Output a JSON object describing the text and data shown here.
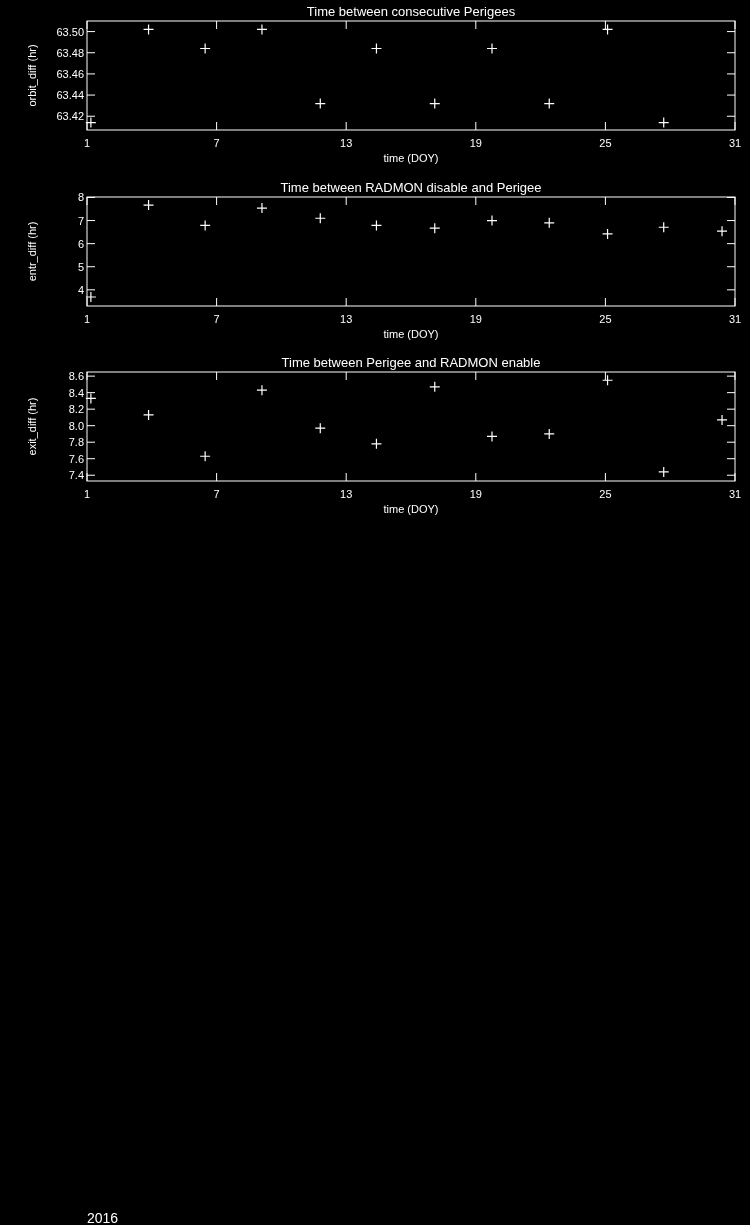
{
  "chart_data": [
    {
      "type": "scatter",
      "title": "Time between consecutive Perigees",
      "xlabel": "time (DOY)",
      "ylabel": "orbit_diff (hr)",
      "marker": "cross",
      "x": [
        1.18,
        3.85,
        6.47,
        9.1,
        11.8,
        14.4,
        17.1,
        19.75,
        22.4,
        25.1,
        27.7
      ],
      "series": [
        {
          "color": "#ffffff",
          "values": [
            63.414,
            63.502,
            63.484,
            63.502,
            63.432,
            63.484,
            63.432,
            63.484,
            63.432,
            63.502,
            63.414
          ]
        }
      ],
      "xlim": [
        1,
        31
      ],
      "xticks": [
        1,
        7,
        13,
        19,
        25,
        31
      ],
      "ylim": [
        63.407,
        63.51
      ],
      "yticks": [
        {
          "value": 63.42,
          "label": "63.42"
        },
        {
          "value": 63.44,
          "label": "63.44"
        },
        {
          "value": 63.46,
          "label": "63.46"
        },
        {
          "value": 63.48,
          "label": "63.48"
        },
        {
          "value": 63.5,
          "label": "63.50"
        }
      ]
    },
    {
      "type": "scatter",
      "title": "Time between RADMON disable and Perigee",
      "xlabel": "time (DOY)",
      "ylabel": "entr_diff (hr)",
      "marker": "cross",
      "x": [
        1.18,
        3.85,
        6.47,
        9.1,
        11.8,
        14.4,
        17.1,
        19.75,
        22.4,
        25.1,
        27.7,
        30.4
      ],
      "series": [
        {
          "color": "#ffffff",
          "values": [
            3.69,
            7.67,
            6.79,
            7.54,
            7.1,
            6.79,
            6.67,
            7.0,
            6.9,
            6.42,
            6.71,
            6.54
          ]
        }
      ],
      "xlim": [
        1,
        31
      ],
      "xticks": [
        1,
        7,
        13,
        19,
        25,
        31
      ],
      "ylim": [
        3.3,
        8.02
      ],
      "yticks": [
        4,
        5,
        6,
        7,
        8
      ]
    },
    {
      "type": "scatter",
      "title": "Time between Perigee and RADMON enable",
      "xlabel": "time (DOY)",
      "ylabel": "exit_diff (hr)",
      "marker": "cross",
      "x": [
        1.18,
        3.85,
        6.47,
        9.1,
        11.8,
        14.4,
        17.1,
        19.75,
        22.4,
        25.1,
        27.7,
        30.4
      ],
      "series": [
        {
          "color": "#ffffff",
          "values": [
            8.33,
            8.13,
            7.63,
            8.43,
            7.97,
            7.78,
            8.47,
            7.87,
            7.9,
            8.55,
            7.44,
            8.07
          ]
        }
      ],
      "xlim": [
        1,
        31
      ],
      "xticks": [
        1,
        7,
        13,
        19,
        25,
        31
      ],
      "ylim": [
        7.33,
        8.65
      ],
      "yticks": [
        {
          "value": 7.4,
          "label": "7.4"
        },
        {
          "value": 7.6,
          "label": "7.6"
        },
        {
          "value": 7.8,
          "label": "7.8"
        },
        {
          "value": 8.0,
          "label": "8.0"
        },
        {
          "value": 8.2,
          "label": "8.2"
        },
        {
          "value": 8.4,
          "label": "8.4"
        },
        {
          "value": 8.6,
          "label": "8.6"
        }
      ],
      "annotations": [
        "2016"
      ]
    }
  ]
}
